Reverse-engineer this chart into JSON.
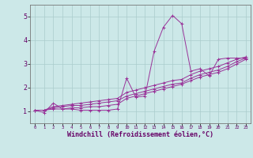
{
  "xlabel": "Windchill (Refroidissement éolien,°C)",
  "bg_color": "#cce8e8",
  "line_color": "#993399",
  "grid_color": "#aacccc",
  "axis_label_color": "#660066",
  "tick_color": "#660066",
  "xlim": [
    -0.5,
    23.5
  ],
  "ylim": [
    0.5,
    5.5
  ],
  "xticks": [
    0,
    1,
    2,
    3,
    4,
    5,
    6,
    7,
    8,
    9,
    10,
    11,
    12,
    13,
    14,
    15,
    16,
    17,
    18,
    19,
    20,
    21,
    22,
    23
  ],
  "yticks": [
    1,
    2,
    3,
    4,
    5
  ],
  "series": [
    [
      1.05,
      0.95,
      1.35,
      1.1,
      1.1,
      1.05,
      1.05,
      1.05,
      1.05,
      1.1,
      2.4,
      1.6,
      1.65,
      3.55,
      4.55,
      5.05,
      4.7,
      2.7,
      2.8,
      2.5,
      3.2,
      3.25,
      3.25,
      3.25
    ],
    [
      1.05,
      1.05,
      1.1,
      1.1,
      1.15,
      1.15,
      1.2,
      1.2,
      1.25,
      1.3,
      1.55,
      1.65,
      1.75,
      1.85,
      1.95,
      2.05,
      2.15,
      2.3,
      2.45,
      2.55,
      2.65,
      2.8,
      3.0,
      3.2
    ],
    [
      1.05,
      1.05,
      1.15,
      1.2,
      1.25,
      1.25,
      1.3,
      1.35,
      1.4,
      1.45,
      1.65,
      1.75,
      1.85,
      1.95,
      2.05,
      2.15,
      2.2,
      2.4,
      2.55,
      2.65,
      2.75,
      2.9,
      3.1,
      3.25
    ],
    [
      1.05,
      1.05,
      1.2,
      1.25,
      1.3,
      1.35,
      1.4,
      1.45,
      1.5,
      1.55,
      1.8,
      1.9,
      2.0,
      2.1,
      2.2,
      2.3,
      2.35,
      2.55,
      2.7,
      2.8,
      2.9,
      3.05,
      3.2,
      3.3
    ]
  ],
  "xlabel_fontsize": 6,
  "xtick_fontsize": 4,
  "ytick_fontsize": 6,
  "linewidth": 0.7,
  "markersize": 2.5
}
